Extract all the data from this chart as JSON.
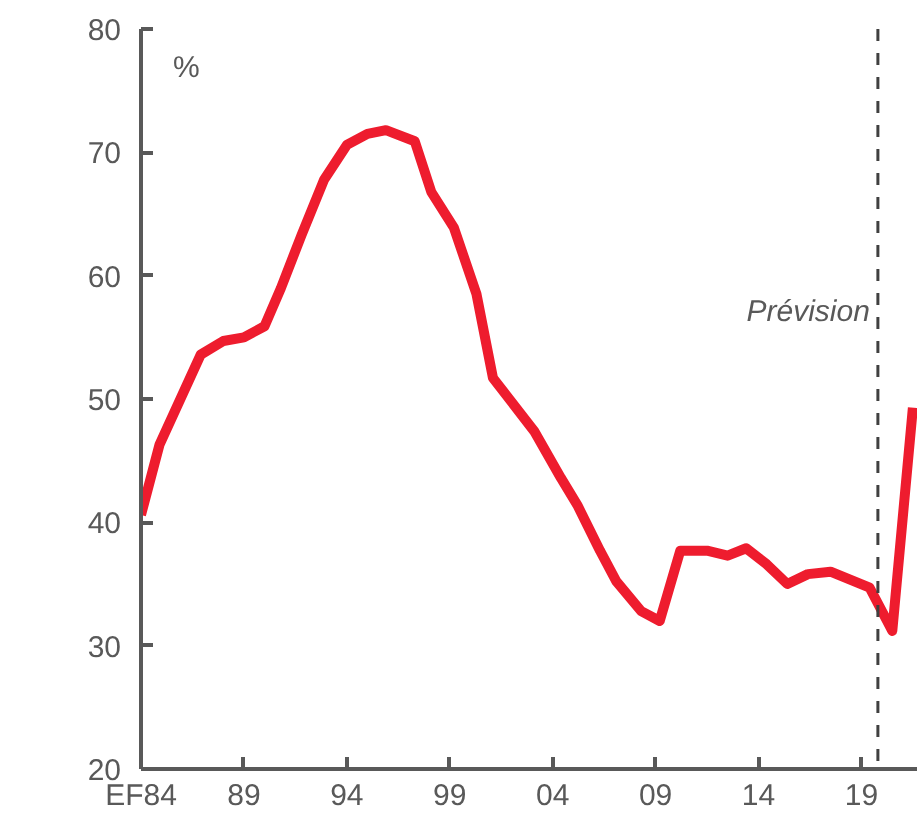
{
  "chart_data": {
    "type": "line",
    "ylabel": "%",
    "x": [
      1984,
      1984.9,
      1986.9,
      1988,
      1989,
      1990,
      1990.8,
      1991.8,
      1992.9,
      1994,
      1995,
      1995.9,
      1997.3,
      1998.1,
      1999.2,
      2000.3,
      2001.1,
      2003.1,
      2004.4,
      2005.2,
      2006.3,
      2007.1,
      2008.3,
      2009.2,
      2010.2,
      2011.5,
      2012.5,
      2013.4,
      2014.4,
      2015.4,
      2016.4,
      2017.5,
      2019.4,
      2020.5,
      2021.5
    ],
    "series": [
      {
        "color": "#ee1c2e",
        "values": [
          40.6,
          46.3,
          53.6,
          54.7,
          55.0,
          55.9,
          59.0,
          63.3,
          67.8,
          70.6,
          71.5,
          71.8,
          70.9,
          66.8,
          63.9,
          58.5,
          51.7,
          47.4,
          43.6,
          41.4,
          37.7,
          35.2,
          32.8,
          32.0,
          37.7,
          37.7,
          37.3,
          37.9,
          36.6,
          35.0,
          35.8,
          36.0,
          34.7,
          31.2,
          49.3
        ]
      }
    ],
    "xlim": [
      1984,
      2021.7
    ],
    "ylim": [
      20,
      80
    ],
    "xticks": [
      {
        "value": 1984,
        "label": "EF84"
      },
      {
        "value": 1989,
        "label": "89"
      },
      {
        "value": 1994,
        "label": "94"
      },
      {
        "value": 1999,
        "label": "99"
      },
      {
        "value": 2004,
        "label": "04"
      },
      {
        "value": 2009,
        "label": "09"
      },
      {
        "value": 2014,
        "label": "14"
      },
      {
        "value": 2019,
        "label": "19"
      }
    ],
    "yticks": [
      20,
      30,
      40,
      50,
      60,
      70,
      80
    ],
    "ref_lines": [
      {
        "axis": "x",
        "value": 2019.8,
        "label": "Prévision",
        "color": "#404040",
        "line_style": "dashed"
      }
    ],
    "grid": false,
    "line_style": "solid",
    "marker": "none"
  }
}
